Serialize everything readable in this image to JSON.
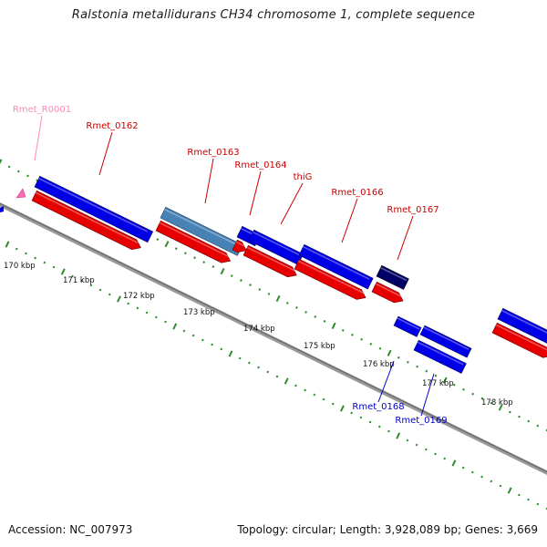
{
  "title": "Ralstonia metallidurans CH34 chromosome 1, complete sequence",
  "accession_label": "Accession: NC_007973",
  "summary_label": "Topology: circular; Length: 3,928,089 bp; Genes: 3,669",
  "colors": {
    "backbone": "#8c8c8c",
    "tick_major": "#2e8b2e",
    "tick_minor": "#2e8b2e",
    "forward_gene": "#0000e6",
    "forward_cds_red": "#e60000",
    "reverse_gene": "#0000e6",
    "highlight_gene": "#4682b4",
    "dark_gene": "#000066",
    "rna_gene": "#ff69b4",
    "label_red": "#cc0000",
    "label_blue": "#0000cc",
    "label_pink": "#ff88bb"
  },
  "scale_labels": [
    "170 kbp",
    "171 kbp",
    "172 kbp",
    "173 kbp",
    "174 kbp",
    "175 kbp",
    "176 kbp",
    "177 kbp",
    "178 kbp"
  ],
  "gene_labels": [
    {
      "text": "Rmet_R0001",
      "color": "pink"
    },
    {
      "text": "Rmet_0162",
      "color": "red"
    },
    {
      "text": "Rmet_0163",
      "color": "red"
    },
    {
      "text": "Rmet_0164",
      "color": "red"
    },
    {
      "text": "thiG",
      "color": "red"
    },
    {
      "text": "Rmet_0166",
      "color": "red"
    },
    {
      "text": "Rmet_0167",
      "color": "red"
    },
    {
      "text": "Rmet_0168",
      "color": "blue"
    },
    {
      "text": "Rmet_0169",
      "color": "blue"
    }
  ]
}
